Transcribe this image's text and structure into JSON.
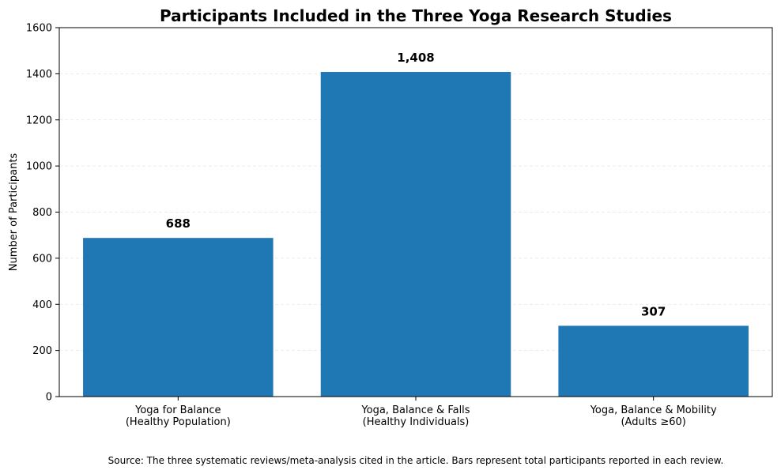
{
  "chart_data": {
    "type": "bar",
    "title": "Participants Included in the Three Yoga Research Studies",
    "ylabel": "Number of Participants",
    "xlabel": "",
    "categories": [
      [
        "Yoga for Balance",
        "(Healthy Population)"
      ],
      [
        "Yoga, Balance & Falls",
        "(Healthy Individuals)"
      ],
      [
        "Yoga, Balance & Mobility",
        "(Adults ≥60)"
      ]
    ],
    "values": [
      688,
      1408,
      307
    ],
    "value_labels": [
      "688",
      "1,408",
      "307"
    ],
    "ylim": [
      0,
      1600
    ],
    "yticks": [
      0,
      200,
      400,
      600,
      800,
      1000,
      1200,
      1400,
      1600
    ],
    "grid": "horizontal dashed",
    "bar_color": "#1f77b4",
    "source_note": "Source: The three systematic reviews/meta-analysis cited in the article. Bars represent total participants reported in each review."
  }
}
